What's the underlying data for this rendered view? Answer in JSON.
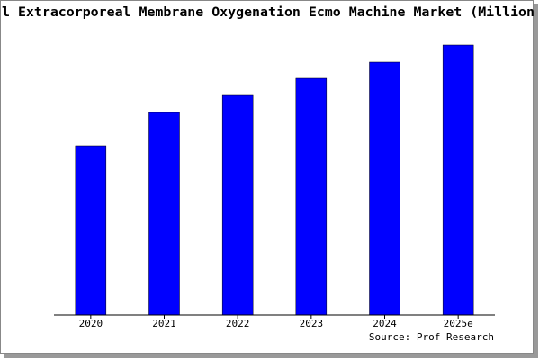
{
  "chart_data": {
    "type": "bar",
    "title": "l Extracorporeal Membrane Oxygenation Ecmo Machine Market (Million",
    "categories": [
      "2020",
      "2021",
      "2022",
      "2023",
      "2024",
      "2025e"
    ],
    "values": [
      188,
      225,
      244,
      263,
      281,
      300
    ],
    "color": "#0000ff",
    "ylim": [
      0,
      302
    ],
    "source": "Source: Prof Research"
  }
}
